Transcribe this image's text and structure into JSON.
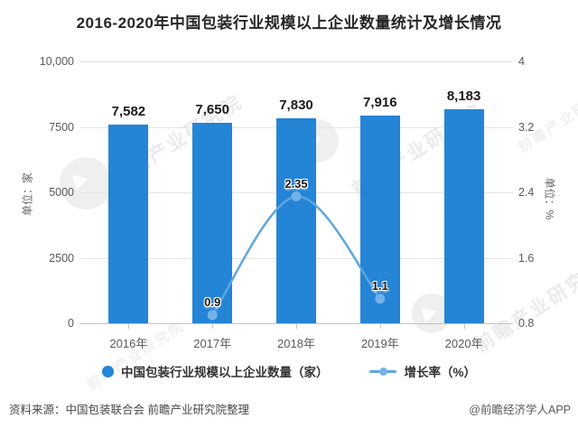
{
  "title": "2016-2020年中国包装行业规模以上企业数量统计及增长情况",
  "chart_data": {
    "type": "bar",
    "categories": [
      "2016年",
      "2017年",
      "2018年",
      "2019年",
      "2020年"
    ],
    "series": [
      {
        "name": "中国包装行业规模以上企业数量（家）",
        "type": "bar",
        "axis": "left",
        "values": [
          7582,
          7650,
          7830,
          7916,
          8183
        ],
        "labels": [
          "7,582",
          "7,650",
          "7,830",
          "7,916",
          "8,183"
        ],
        "color": "#2484d6"
      },
      {
        "name": "增长率（%）",
        "type": "line",
        "axis": "right",
        "values": [
          null,
          0.9,
          2.35,
          1.1,
          null
        ],
        "labels": [
          "",
          "0.9",
          "2.35",
          "1.1",
          ""
        ],
        "color": "#5ea6e0",
        "marker_color": "#72b2e8"
      }
    ],
    "left_axis": {
      "label": "单位：家",
      "ticks": [
        "10,000",
        "7500",
        "5000",
        "2500",
        "0"
      ],
      "range": [
        0,
        10000
      ]
    },
    "right_axis": {
      "label": "单位：%",
      "ticks": [
        "4",
        "3.2",
        "2.4",
        "1.6",
        "0.8"
      ],
      "range": [
        0.8,
        4
      ]
    },
    "grid": true,
    "legend_position": "bottom",
    "colors": {
      "grid": "#e4e4e4",
      "axis": "#c2c2c2"
    }
  },
  "footer": {
    "source": "资料来源：中国包装联合会 前瞻产业研究院整理",
    "credit": "@前瞻经济学人APP"
  },
  "watermark": {
    "text": "前瞻产业研究院"
  }
}
